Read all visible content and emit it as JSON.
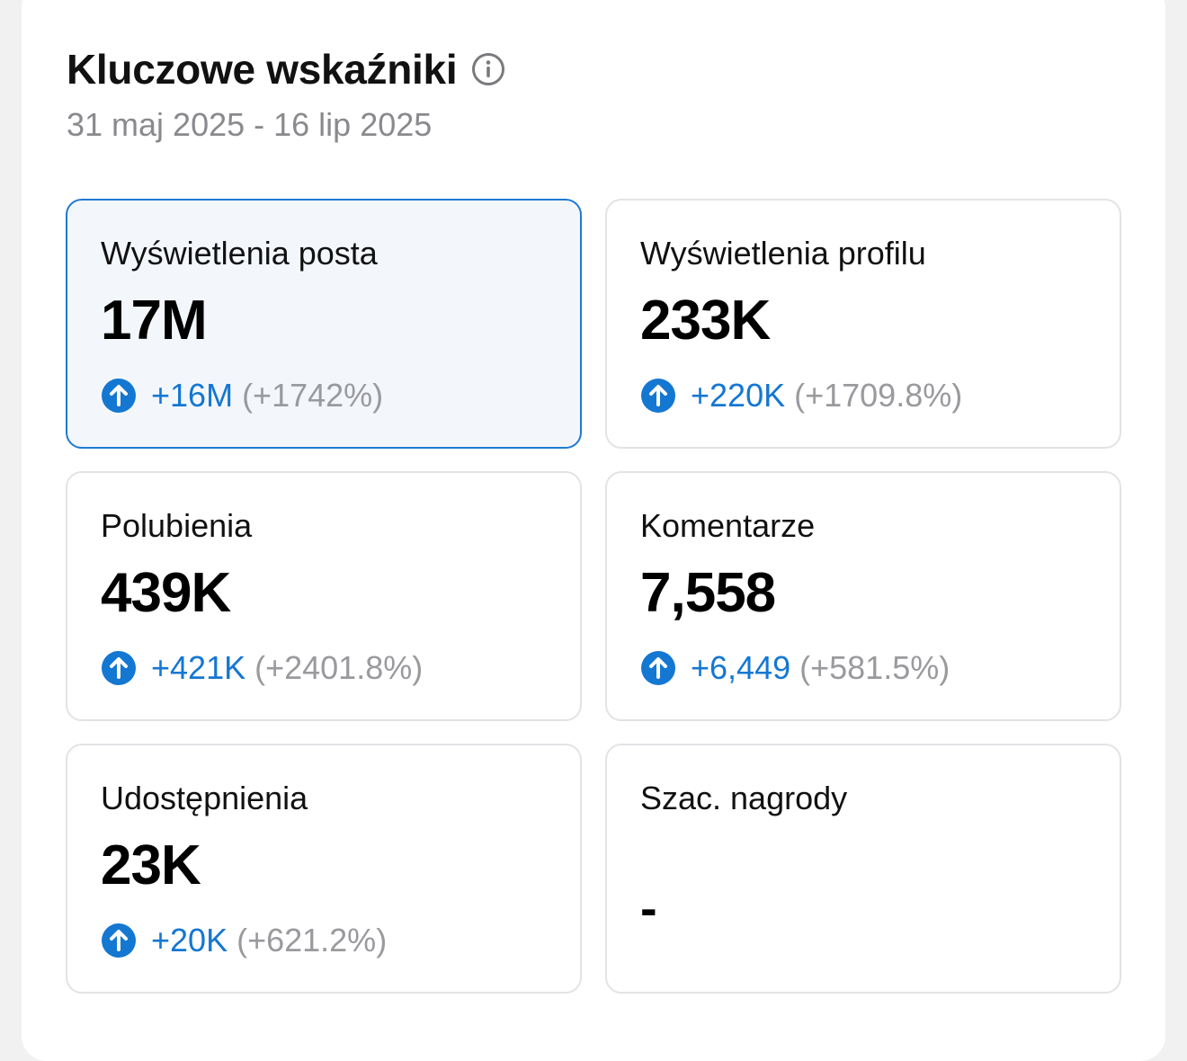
{
  "header": {
    "title": "Kluczowe wskaźniki",
    "info_icon": "info-icon",
    "date_range": "31 maj 2025 - 16 lip 2025"
  },
  "colors": {
    "accent": "#1477d2",
    "selected_border": "#1e7ad3",
    "selected_bg": "#f3f7fc",
    "muted": "#9a9a9e"
  },
  "metrics": [
    {
      "label": "Wyświetlenia posta",
      "value": "17M",
      "change": "+16M",
      "percent": "(+1742%)",
      "icon": "arrow-up-circle-icon"
    },
    {
      "label": "Wyświetlenia profilu",
      "value": "233K",
      "change": "+220K",
      "percent": "(+1709.8%)",
      "icon": "arrow-up-circle-icon"
    },
    {
      "label": "Polubienia",
      "value": "439K",
      "change": "+421K",
      "percent": "(+2401.8%)",
      "icon": "arrow-up-circle-icon"
    },
    {
      "label": "Komentarze",
      "value": "7,558",
      "change": "+6,449",
      "percent": "(+581.5%)",
      "icon": "arrow-up-circle-icon"
    },
    {
      "label": "Udostępnienia",
      "value": "23K",
      "change": "+20K",
      "percent": "(+621.2%)",
      "icon": "arrow-up-circle-icon"
    },
    {
      "label": "Szac. nagrody",
      "value": "-"
    }
  ]
}
